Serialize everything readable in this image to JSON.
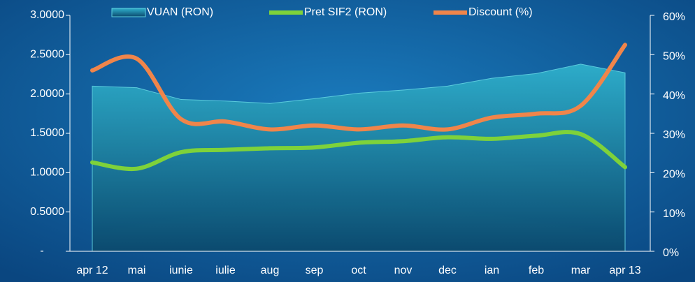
{
  "chart_data": {
    "type": "line",
    "categories": [
      "apr 12",
      "mai",
      "iunie",
      "iulie",
      "aug",
      "sep",
      "oct",
      "nov",
      "dec",
      "ian",
      "feb",
      "mar",
      "apr 13"
    ],
    "series": [
      {
        "name": "VUAN (RON)",
        "style": "area",
        "color": "#2aa6c4",
        "values": [
          2.1,
          2.08,
          1.93,
          1.91,
          1.88,
          1.94,
          2.01,
          2.05,
          2.1,
          2.2,
          2.26,
          2.38,
          2.27
        ]
      },
      {
        "name": "Pret SIF2 (RON)",
        "style": "line",
        "color": "#7ed23a",
        "values": [
          1.13,
          1.05,
          1.26,
          1.29,
          1.31,
          1.32,
          1.38,
          1.4,
          1.45,
          1.43,
          1.47,
          1.49,
          1.07
        ]
      },
      {
        "name": "Discount (%)",
        "style": "line",
        "axis": "y2",
        "color": "#f0854a",
        "values": [
          46,
          49,
          33.6,
          33,
          31,
          32,
          31,
          32,
          31,
          34,
          35,
          37,
          52.5
        ]
      }
    ],
    "ylim": [
      0,
      3
    ],
    "yticks": [
      {
        "value": 0,
        "label": "-"
      },
      {
        "value": 0.5,
        "label": "0.5000"
      },
      {
        "value": 1,
        "label": "1.0000"
      },
      {
        "value": 1.5,
        "label": "1.5000"
      },
      {
        "value": 2,
        "label": "2.0000"
      },
      {
        "value": 2.5,
        "label": "2.5000"
      },
      {
        "value": 3,
        "label": "3.0000"
      }
    ],
    "y2lim": [
      0,
      60
    ],
    "y2ticks": [
      {
        "value": 0,
        "label": "0%"
      },
      {
        "value": 10,
        "label": "10%"
      },
      {
        "value": 20,
        "label": "20%"
      },
      {
        "value": 30,
        "label": "30%"
      },
      {
        "value": 40,
        "label": "40%"
      },
      {
        "value": 50,
        "label": "50%"
      },
      {
        "value": 60,
        "label": "60%"
      }
    ],
    "legend": "top"
  }
}
